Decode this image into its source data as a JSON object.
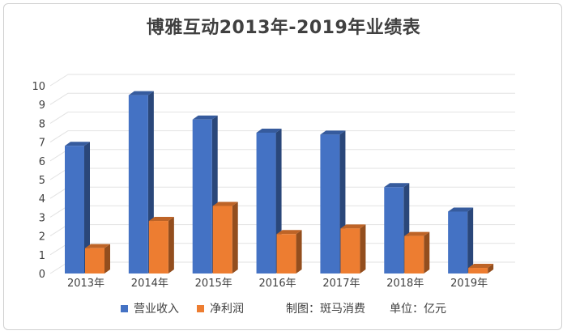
{
  "chart_data": {
    "type": "bar",
    "title": "博雅互动2013年-2019年业绩表",
    "categories": [
      "2013年",
      "2014年",
      "2015年",
      "2016年",
      "2017年",
      "2018年",
      "2019年"
    ],
    "series": [
      {
        "name": "营业收入",
        "values": [
          6.8,
          9.5,
          8.2,
          7.5,
          7.4,
          4.6,
          3.3
        ],
        "color": "#4472c4"
      },
      {
        "name": "净利润",
        "values": [
          1.35,
          2.8,
          3.6,
          2.1,
          2.4,
          2.0,
          0.3
        ],
        "color": "#ed7d31"
      }
    ],
    "ylim": [
      0,
      10
    ],
    "yticks": [
      0,
      1,
      2,
      3,
      4,
      5,
      6,
      7,
      8,
      9,
      10
    ],
    "xlabel": "",
    "ylabel": "",
    "grid": true,
    "legend": "bottom"
  },
  "footer": {
    "source": "制图：斑马消费",
    "unit": "单位：亿元"
  },
  "colors": {
    "grid": "#e2e2e2",
    "axis_text": "#404040"
  }
}
